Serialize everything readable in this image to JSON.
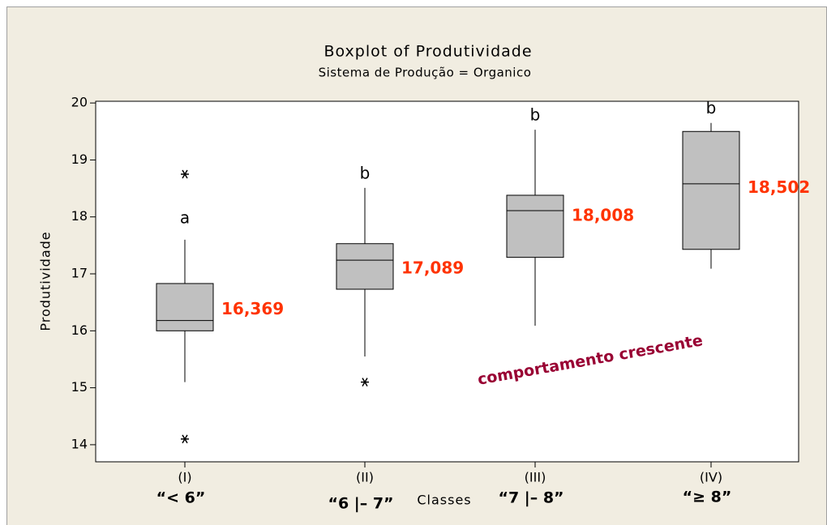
{
  "chart_data": {
    "type": "box",
    "title": "Boxplot of Produtividade",
    "subtitle": "Sistema de Produção = Organico",
    "x_label": "Classes",
    "y_label": "Produtividade",
    "categories": [
      "(I)",
      "(II)",
      "(III)",
      "(IV)"
    ],
    "class_labels": [
      "“< 6”",
      "“6 |– 7”",
      "“7 |– 8”",
      "“≥ 8”"
    ],
    "boxes": [
      {
        "whisker_low": 15.1,
        "q1": 16.0,
        "median": 16.18,
        "q3": 16.83,
        "whisker_high": 17.6,
        "outliers": [
          18.75,
          14.1
        ]
      },
      {
        "whisker_low": 15.55,
        "q1": 16.73,
        "median": 17.24,
        "q3": 17.53,
        "whisker_high": 18.51,
        "outliers": [
          15.1
        ]
      },
      {
        "whisker_low": 16.09,
        "q1": 17.29,
        "median": 18.11,
        "q3": 18.38,
        "whisker_high": 19.53,
        "outliers": []
      },
      {
        "whisker_low": 17.09,
        "q1": 17.43,
        "median": 18.58,
        "q3": 19.5,
        "whisker_high": 19.65,
        "outliers": []
      }
    ],
    "means": [
      16.369,
      17.089,
      18.008,
      18.502
    ],
    "mean_labels": [
      "16,369",
      "17,089",
      "18,008",
      "18,502"
    ],
    "group_letters": [
      "a",
      "b",
      "b",
      "b"
    ],
    "annotation": "comportamento crescente",
    "box_color": "#c0c0c0",
    "label_color": "#ff3300",
    "annotation_color": "#990033",
    "ylim": [
      13.7,
      20.03
    ],
    "yticks": [
      14,
      15,
      16,
      17,
      18,
      19,
      20
    ]
  }
}
